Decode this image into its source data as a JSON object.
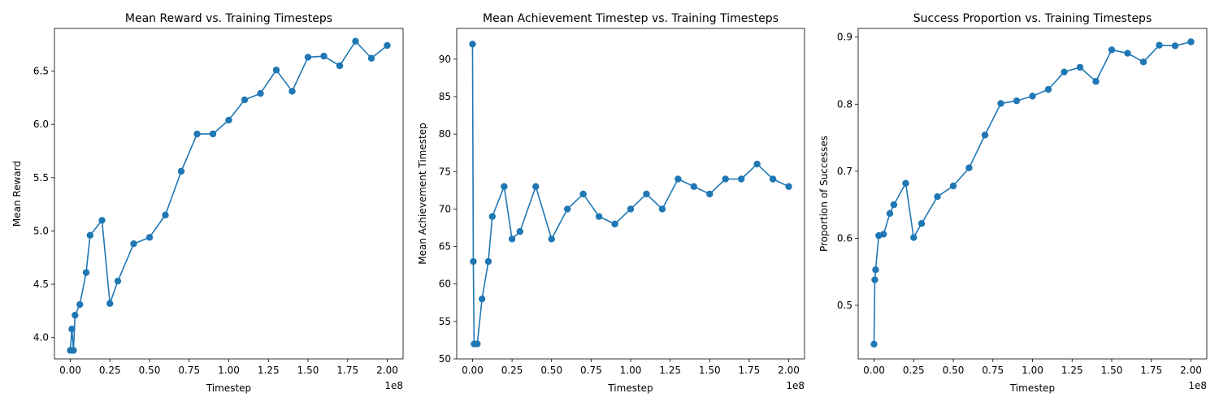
{
  "figure": {
    "line_color": "#1f77b4",
    "axes_color": "#000000",
    "background": "#ffffff"
  },
  "chart_data": [
    {
      "type": "line",
      "markers": true,
      "title": "Mean Reward vs. Training Timesteps",
      "xlabel": "Timestep",
      "ylabel": "Mean Reward",
      "x_offset_text": "1e8",
      "xlim": [
        -0.1,
        2.1
      ],
      "ylim": [
        3.8,
        6.9
      ],
      "xticks": [
        0.0,
        0.25,
        0.5,
        0.75,
        1.0,
        1.25,
        1.5,
        1.75,
        2.0
      ],
      "xticklabels": [
        "0.00",
        "0.25",
        "0.50",
        "0.75",
        "1.00",
        "1.25",
        "1.50",
        "1.75",
        "2.00"
      ],
      "yticks": [
        4.0,
        4.5,
        5.0,
        5.5,
        6.0,
        6.5
      ],
      "yticklabels": [
        "4.0",
        "4.5",
        "5.0",
        "5.5",
        "6.0",
        "6.5"
      ],
      "grid": false,
      "series": [
        {
          "x": [
            0.0,
            0.01,
            0.02,
            0.03,
            0.06,
            0.1,
            0.125,
            0.2,
            0.25,
            0.3,
            0.4,
            0.5,
            0.6,
            0.7,
            0.8,
            0.9,
            1.0,
            1.1,
            1.2,
            1.3,
            1.4,
            1.5,
            1.6,
            1.7,
            1.8,
            1.9,
            2.0
          ],
          "y": [
            3.88,
            4.08,
            3.88,
            4.21,
            4.31,
            4.61,
            4.96,
            5.1,
            4.32,
            4.53,
            4.88,
            4.94,
            5.15,
            5.56,
            5.91,
            5.91,
            6.04,
            6.23,
            6.29,
            6.51,
            6.31,
            6.63,
            6.64,
            6.55,
            6.78,
            6.62,
            6.74
          ]
        }
      ]
    },
    {
      "type": "line",
      "markers": true,
      "title": "Mean Achievement Timestep vs. Training Timesteps",
      "xlabel": "Timestep",
      "ylabel": "Mean Achievement Timestep",
      "x_offset_text": "1e8",
      "xlim": [
        -0.1,
        2.1
      ],
      "ylim": [
        50,
        94.1
      ],
      "xticks": [
        0.0,
        0.25,
        0.5,
        0.75,
        1.0,
        1.25,
        1.5,
        1.75,
        2.0
      ],
      "xticklabels": [
        "0.00",
        "0.25",
        "0.50",
        "0.75",
        "1.00",
        "1.25",
        "1.50",
        "1.75",
        "2.00"
      ],
      "yticks": [
        50,
        55,
        60,
        65,
        70,
        75,
        80,
        85,
        90
      ],
      "yticklabels": [
        "50",
        "55",
        "60",
        "65",
        "70",
        "75",
        "80",
        "85",
        "90"
      ],
      "grid": false,
      "series": [
        {
          "x": [
            0.0,
            0.005,
            0.01,
            0.03,
            0.06,
            0.1,
            0.125,
            0.2,
            0.25,
            0.3,
            0.4,
            0.5,
            0.6,
            0.7,
            0.8,
            0.9,
            1.0,
            1.1,
            1.2,
            1.3,
            1.4,
            1.5,
            1.6,
            1.7,
            1.8,
            1.9,
            2.0
          ],
          "y": [
            92,
            63,
            52,
            52,
            58,
            63,
            69,
            73,
            66,
            67,
            73,
            66,
            70,
            72,
            69,
            68,
            70,
            72,
            70,
            74,
            73,
            72,
            74,
            74,
            76,
            74,
            73
          ]
        }
      ]
    },
    {
      "type": "line",
      "markers": true,
      "title": "Success Proportion vs. Training Timesteps",
      "xlabel": "Timestep",
      "ylabel": "Proportion of Successes",
      "x_offset_text": "1e8",
      "xlim": [
        -0.1,
        2.1
      ],
      "ylim": [
        0.42,
        0.913
      ],
      "xticks": [
        0.0,
        0.25,
        0.5,
        0.75,
        1.0,
        1.25,
        1.5,
        1.75,
        2.0
      ],
      "xticklabels": [
        "0.00",
        "0.25",
        "0.50",
        "0.75",
        "1.00",
        "1.25",
        "1.50",
        "1.75",
        "2.00"
      ],
      "yticks": [
        0.5,
        0.6,
        0.7,
        0.8,
        0.9
      ],
      "yticklabels": [
        "0.5",
        "0.6",
        "0.7",
        "0.8",
        "0.9"
      ],
      "grid": false,
      "series": [
        {
          "x": [
            0.0,
            0.005,
            0.01,
            0.03,
            0.06,
            0.1,
            0.125,
            0.2,
            0.25,
            0.3,
            0.4,
            0.5,
            0.6,
            0.7,
            0.8,
            0.9,
            1.0,
            1.1,
            1.2,
            1.3,
            1.4,
            1.5,
            1.6,
            1.7,
            1.8,
            1.9,
            2.0
          ],
          "y": [
            0.442,
            0.538,
            0.553,
            0.604,
            0.606,
            0.637,
            0.65,
            0.682,
            0.601,
            0.622,
            0.662,
            0.678,
            0.705,
            0.754,
            0.801,
            0.805,
            0.812,
            0.822,
            0.848,
            0.855,
            0.834,
            0.881,
            0.876,
            0.863,
            0.888,
            0.887,
            0.893
          ]
        }
      ]
    }
  ]
}
